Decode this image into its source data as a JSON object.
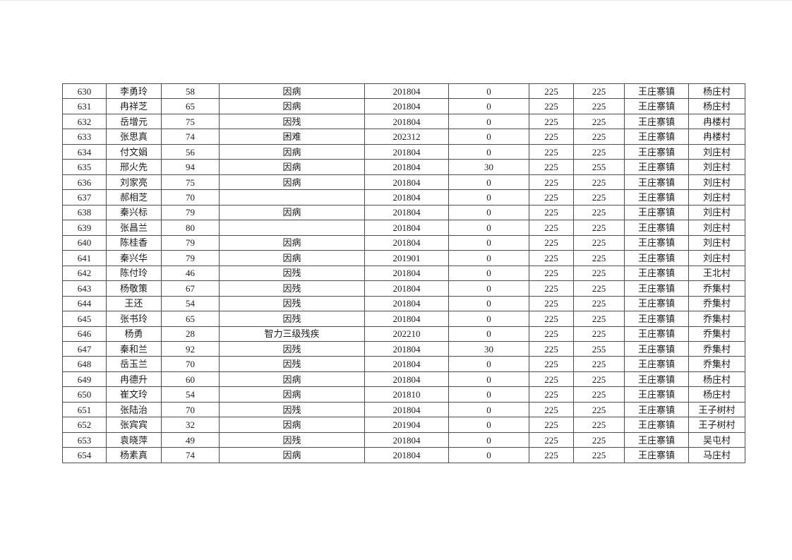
{
  "page": {
    "background": "#ffffff",
    "text_color": "#1c1c1c"
  },
  "table": {
    "border_color": "#4d4d4d",
    "rows": [
      [
        "630",
        "李勇玲",
        "58",
        "因病",
        "201804",
        "0",
        "225",
        "225",
        "王庄寨镇",
        "杨庄村"
      ],
      [
        "631",
        "冉祥芝",
        "65",
        "因病",
        "201804",
        "0",
        "225",
        "225",
        "王庄寨镇",
        "杨庄村"
      ],
      [
        "632",
        "岳增元",
        "75",
        "因残",
        "201804",
        "0",
        "225",
        "225",
        "王庄寨镇",
        "冉楼村"
      ],
      [
        "633",
        "张思真",
        "74",
        "困难",
        "202312",
        "0",
        "225",
        "225",
        "王庄寨镇",
        "冉楼村"
      ],
      [
        "634",
        "付文娟",
        "56",
        "因病",
        "201804",
        "0",
        "225",
        "225",
        "王庄寨镇",
        "刘庄村"
      ],
      [
        "635",
        "邢火先",
        "94",
        "因病",
        "201804",
        "30",
        "225",
        "255",
        "王庄寨镇",
        "刘庄村"
      ],
      [
        "636",
        "刘家亮",
        "75",
        "因病",
        "201804",
        "0",
        "225",
        "225",
        "王庄寨镇",
        "刘庄村"
      ],
      [
        "637",
        "郝相芝",
        "70",
        "",
        "201804",
        "0",
        "225",
        "225",
        "王庄寨镇",
        "刘庄村"
      ],
      [
        "638",
        "秦兴标",
        "79",
        "因病",
        "201804",
        "0",
        "225",
        "225",
        "王庄寨镇",
        "刘庄村"
      ],
      [
        "639",
        "张昌兰",
        "80",
        "",
        "201804",
        "0",
        "225",
        "225",
        "王庄寨镇",
        "刘庄村"
      ],
      [
        "640",
        "陈桂香",
        "79",
        "因病",
        "201804",
        "0",
        "225",
        "225",
        "王庄寨镇",
        "刘庄村"
      ],
      [
        "641",
        "秦兴华",
        "79",
        "因病",
        "201901",
        "0",
        "225",
        "225",
        "王庄寨镇",
        "刘庄村"
      ],
      [
        "642",
        "陈付玲",
        "46",
        "因残",
        "201804",
        "0",
        "225",
        "225",
        "王庄寨镇",
        "王北村"
      ],
      [
        "643",
        "杨敬策",
        "67",
        "因残",
        "201804",
        "0",
        "225",
        "225",
        "王庄寨镇",
        "乔集村"
      ],
      [
        "644",
        "王还",
        "54",
        "因残",
        "201804",
        "0",
        "225",
        "225",
        "王庄寨镇",
        "乔集村"
      ],
      [
        "645",
        "张书玲",
        "65",
        "因残",
        "201804",
        "0",
        "225",
        "225",
        "王庄寨镇",
        "乔集村"
      ],
      [
        "646",
        "杨勇",
        "28",
        "智力三级残疾",
        "202210",
        "0",
        "225",
        "225",
        "王庄寨镇",
        "乔集村"
      ],
      [
        "647",
        "秦和兰",
        "92",
        "因残",
        "201804",
        "30",
        "225",
        "255",
        "王庄寨镇",
        "乔集村"
      ],
      [
        "648",
        "岳玉兰",
        "70",
        "因残",
        "201804",
        "0",
        "225",
        "225",
        "王庄寨镇",
        "乔集村"
      ],
      [
        "649",
        "冉德升",
        "60",
        "因病",
        "201804",
        "0",
        "225",
        "225",
        "王庄寨镇",
        "杨庄村"
      ],
      [
        "650",
        "崔文玲",
        "54",
        "因病",
        "201810",
        "0",
        "225",
        "225",
        "王庄寨镇",
        "杨庄村"
      ],
      [
        "651",
        "张陆治",
        "70",
        "因残",
        "201804",
        "0",
        "225",
        "225",
        "王庄寨镇",
        "王子树村"
      ],
      [
        "652",
        "张宾宾",
        "32",
        "因病",
        "201904",
        "0",
        "225",
        "225",
        "王庄寨镇",
        "王子树村"
      ],
      [
        "653",
        "袁晓萍",
        "49",
        "因残",
        "201804",
        "0",
        "225",
        "225",
        "王庄寨镇",
        "吴屯村"
      ],
      [
        "654",
        "杨素真",
        "74",
        "因病",
        "201804",
        "0",
        "225",
        "225",
        "王庄寨镇",
        "马庄村"
      ]
    ]
  }
}
